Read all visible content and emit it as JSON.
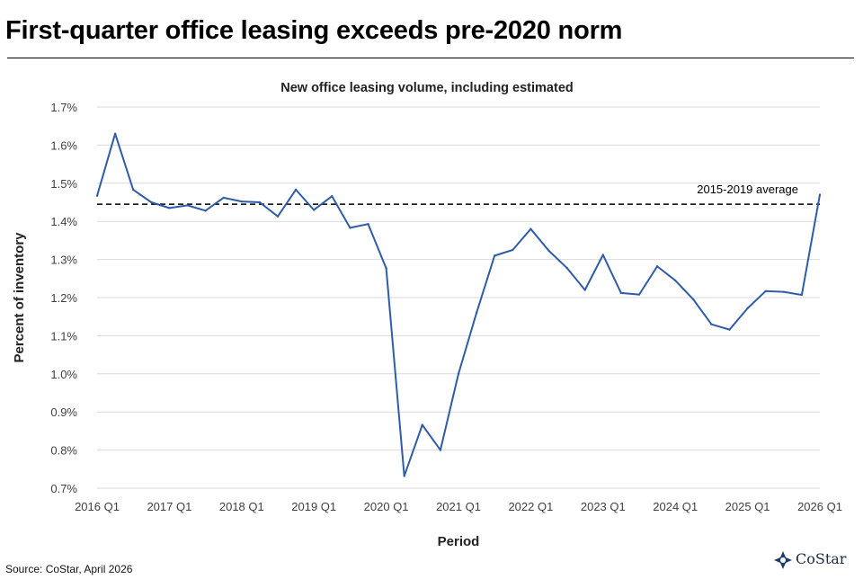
{
  "headline": "First-quarter office leasing exceeds pre-2020 norm",
  "source": "Source: CoStar, April 2026",
  "logo": {
    "text": "CoStar",
    "icon": "costar-logo-icon"
  },
  "colors": {
    "line": "#2f5ca8",
    "reference": "#000000",
    "grid": "#d9d9d9",
    "text": "#404040"
  },
  "chart_data": {
    "type": "line",
    "title": "New office leasing volume, including estimated",
    "xlabel": "Period",
    "ylabel": "Percent of inventory",
    "ylim": [
      0.7,
      1.7
    ],
    "yticks": [
      "0.7%",
      "0.8%",
      "0.9%",
      "1.0%",
      "1.1%",
      "1.2%",
      "1.3%",
      "1.4%",
      "1.5%",
      "1.6%",
      "1.7%"
    ],
    "xticks": [
      "2016 Q1",
      "2017 Q1",
      "2018 Q1",
      "2019 Q1",
      "2020 Q1",
      "2021 Q1",
      "2022 Q1",
      "2023 Q1",
      "2024 Q1",
      "2025 Q1",
      "2026 Q1"
    ],
    "grid": "horizontal",
    "x": [
      "2016 Q1",
      "2016 Q2",
      "2016 Q3",
      "2016 Q4",
      "2017 Q1",
      "2017 Q2",
      "2017 Q3",
      "2017 Q4",
      "2018 Q1",
      "2018 Q2",
      "2018 Q3",
      "2018 Q4",
      "2019 Q1",
      "2019 Q2",
      "2019 Q3",
      "2019 Q4",
      "2020 Q1",
      "2020 Q2",
      "2020 Q3",
      "2020 Q4",
      "2021 Q1",
      "2021 Q2",
      "2021 Q3",
      "2021 Q4",
      "2022 Q1",
      "2022 Q2",
      "2022 Q3",
      "2022 Q4",
      "2023 Q1",
      "2023 Q2",
      "2023 Q3",
      "2023 Q4",
      "2024 Q1",
      "2024 Q2",
      "2024 Q3",
      "2024 Q4",
      "2025 Q1",
      "2025 Q2",
      "2025 Q3",
      "2025 Q4",
      "2026 Q1"
    ],
    "series": [
      {
        "values": [
          1.467,
          1.63,
          1.483,
          1.45,
          1.435,
          1.442,
          1.428,
          1.462,
          1.452,
          1.45,
          1.413,
          1.483,
          1.43,
          1.466,
          1.383,
          1.393,
          1.277,
          0.732,
          0.866,
          0.8,
          1.0,
          1.16,
          1.31,
          1.325,
          1.38,
          1.323,
          1.278,
          1.22,
          1.312,
          1.212,
          1.208,
          1.282,
          1.245,
          1.195,
          1.13,
          1.116,
          1.172,
          1.217,
          1.215,
          1.207,
          1.47
        ]
      }
    ],
    "reference_line": {
      "label": "2015-2019 average",
      "value": 1.445
    }
  }
}
